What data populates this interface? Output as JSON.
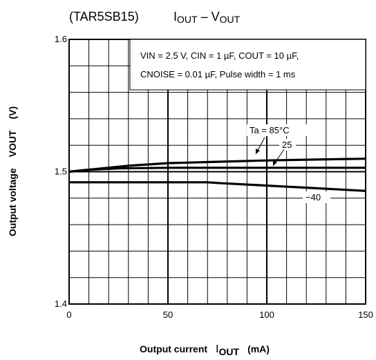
{
  "chart_data": {
    "type": "line",
    "title_part": "(TAR5SB15)",
    "title_function": {
      "i": "I",
      "i_sub": "OUT",
      "dash": " – ",
      "v": "V",
      "v_sub": "OUT"
    },
    "xlabel": {
      "text": "Output current",
      "sym": "I",
      "sub": "OUT",
      "unit": "(mA)"
    },
    "ylabel": {
      "text": "Output voltage",
      "sym": "VOUT",
      "unit": "(V)"
    },
    "xlim": [
      0,
      150
    ],
    "ylim": [
      1.4,
      1.6
    ],
    "x_ticks": [
      "0",
      "50",
      "100",
      "150"
    ],
    "y_ticks": [
      "1.4",
      "1.5",
      "1.6"
    ],
    "grid": true,
    "conditions": [
      "VIN = 2.5 V, CIN = 1 µF, COUT = 10 µF,",
      "CNOISE = 0.01 µF, Pulse width = 1 ms"
    ],
    "series": [
      {
        "name": "Ta = 85°C",
        "x": [
          0,
          10,
          30,
          50,
          75,
          100,
          125,
          150
        ],
        "values": [
          1.5,
          1.5015,
          1.5045,
          1.5065,
          1.5075,
          1.5085,
          1.5092,
          1.5098
        ]
      },
      {
        "name": "25",
        "x": [
          0,
          10,
          25,
          50,
          75,
          100,
          125,
          150
        ],
        "values": [
          1.5,
          1.5015,
          1.5025,
          1.503,
          1.503,
          1.503,
          1.503,
          1.503
        ]
      },
      {
        "name": "−40",
        "x": [
          0,
          25,
          50,
          70,
          75,
          100,
          125,
          150
        ],
        "values": [
          1.492,
          1.492,
          1.492,
          1.492,
          1.4915,
          1.4895,
          1.4875,
          1.4855
        ]
      }
    ]
  }
}
